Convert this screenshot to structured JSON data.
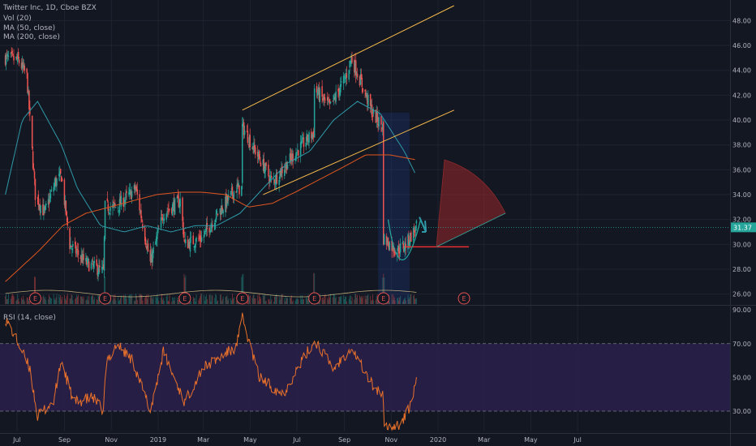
{
  "legend": {
    "symbol": "Twitter Inc, 1D, Cboe BZX",
    "vol": "Vol (20)",
    "ma50": "MA (50, close)",
    "ma200": "MA (200, close)",
    "rsi": "RSI (14, close)"
  },
  "price_badge": "31.37",
  "colors": {
    "background": "#131722",
    "up": "#26a69a",
    "down": "#ef5350",
    "ma50": "#2e9aa8",
    "ma200": "#e0561f",
    "channel": "#f5b94a",
    "rsi": "#e8702a",
    "rsi_band": "#2a1f4a"
  },
  "chart_data": {
    "type": "candlestick",
    "symbol": "Twitter Inc",
    "interval": "1D",
    "exchange": "Cboe BZX",
    "price_axis": {
      "ticks": [
        "26.00",
        "28.00",
        "30.00",
        "32.00",
        "34.00",
        "36.00",
        "38.00",
        "40.00",
        "42.00",
        "44.00",
        "46.00",
        "48.00"
      ],
      "ylim": [
        24.6,
        49.2
      ]
    },
    "time_axis": {
      "ticks": [
        "Jul",
        "Sep",
        "Nov",
        "2019",
        "Mar",
        "May",
        "Jul",
        "Sep",
        "Nov",
        "2020",
        "Mar",
        "May",
        "Jul"
      ]
    },
    "last_price": 31.37,
    "close_anchors": [
      [
        "2018-06-18",
        45.0
      ],
      [
        "2018-07-05",
        44.8
      ],
      [
        "2018-07-16",
        43.5
      ],
      [
        "2018-07-27",
        34.0
      ],
      [
        "2018-08-08",
        32.5
      ],
      [
        "2018-08-22",
        35.0
      ],
      [
        "2018-08-30",
        35.5
      ],
      [
        "2018-09-10",
        30.0
      ],
      [
        "2018-10-01",
        28.5
      ],
      [
        "2018-10-24",
        27.8
      ],
      [
        "2018-10-26",
        33.0
      ],
      [
        "2018-11-10",
        33.0
      ],
      [
        "2018-12-05",
        34.5
      ],
      [
        "2018-12-24",
        28.5
      ],
      [
        "2019-01-10",
        32.5
      ],
      [
        "2019-02-01",
        33.5
      ],
      [
        "2019-02-07",
        30.0
      ],
      [
        "2019-03-01",
        30.5
      ],
      [
        "2019-03-22",
        32.5
      ],
      [
        "2019-04-15",
        34.5
      ],
      [
        "2019-04-22",
        34.5
      ],
      [
        "2019-04-23",
        39.5
      ],
      [
        "2019-05-10",
        37.5
      ],
      [
        "2019-06-01",
        35.0
      ],
      [
        "2019-06-20",
        36.5
      ],
      [
        "2019-07-10",
        38.0
      ],
      [
        "2019-07-25",
        39.0
      ],
      [
        "2019-07-26",
        42.5
      ],
      [
        "2019-08-15",
        41.0
      ],
      [
        "2019-09-05",
        43.5
      ],
      [
        "2019-09-12",
        45.0
      ],
      [
        "2019-09-25",
        43.0
      ],
      [
        "2019-10-10",
        40.5
      ],
      [
        "2019-10-23",
        39.5
      ],
      [
        "2019-10-24",
        30.5
      ],
      [
        "2019-11-10",
        29.5
      ],
      [
        "2019-11-22",
        30.0
      ],
      [
        "2019-12-06",
        31.37
      ]
    ],
    "ma50_anchors": [
      [
        "2018-06-18",
        34.0
      ],
      [
        "2018-07-10",
        40.0
      ],
      [
        "2018-07-30",
        41.5
      ],
      [
        "2018-08-30",
        38.0
      ],
      [
        "2018-09-20",
        34.5
      ],
      [
        "2018-10-20",
        31.5
      ],
      [
        "2018-11-20",
        31.0
      ],
      [
        "2018-12-20",
        31.5
      ],
      [
        "2019-01-20",
        31.0
      ],
      [
        "2019-02-20",
        31.5
      ],
      [
        "2019-03-20",
        31.5
      ],
      [
        "2019-04-20",
        32.5
      ],
      [
        "2019-05-20",
        34.5
      ],
      [
        "2019-06-20",
        36.5
      ],
      [
        "2019-07-20",
        37.5
      ],
      [
        "2019-08-20",
        40.0
      ],
      [
        "2019-09-20",
        41.5
      ],
      [
        "2019-10-20",
        40.5
      ],
      [
        "2019-11-20",
        37.5
      ],
      [
        "2019-12-06",
        35.5
      ]
    ],
    "ma200_anchors": [
      [
        "2018-06-18",
        27.0
      ],
      [
        "2018-08-01",
        29.5
      ],
      [
        "2018-09-01",
        31.5
      ],
      [
        "2018-10-01",
        32.5
      ],
      [
        "2018-11-01",
        33.0
      ],
      [
        "2018-12-01",
        33.5
      ],
      [
        "2019-01-01",
        34.0
      ],
      [
        "2019-02-01",
        34.2
      ],
      [
        "2019-03-01",
        34.2
      ],
      [
        "2019-04-01",
        34.0
      ],
      [
        "2019-05-01",
        33.0
      ],
      [
        "2019-06-01",
        33.3
      ],
      [
        "2019-07-01",
        34.2
      ],
      [
        "2019-08-01",
        35.2
      ],
      [
        "2019-09-01",
        36.2
      ],
      [
        "2019-10-01",
        37.2
      ],
      [
        "2019-11-01",
        37.2
      ],
      [
        "2019-12-06",
        36.8
      ]
    ],
    "channel_lines": [
      {
        "from": [
          "2019-04-23",
          40.8
        ],
        "to": [
          "2020-01-24",
          49.2
        ]
      },
      {
        "from": [
          "2019-05-20",
          34.0
        ],
        "to": [
          "2020-01-24",
          40.8
        ]
      }
    ],
    "horizontal_level": {
      "price": 29.8,
      "from": "2019-11-22",
      "to": "2020-01-01"
    },
    "earnings_dates": [
      "2018-07-27",
      "2018-10-26",
      "2019-02-07",
      "2019-04-23",
      "2019-07-26",
      "2019-10-24",
      "2020-02-06"
    ],
    "rsi": {
      "period": 14,
      "ylim": [
        18,
        92
      ],
      "ticks": [
        "30.00",
        "50.00",
        "70.00",
        "90.00"
      ],
      "overbought": 70,
      "oversold": 30,
      "anchors": [
        [
          "2018-06-18",
          85.0
        ],
        [
          "2018-07-05",
          70.0
        ],
        [
          "2018-07-20",
          55.0
        ],
        [
          "2018-07-30",
          27.0
        ],
        [
          "2018-08-20",
          36.0
        ],
        [
          "2018-08-30",
          60.0
        ],
        [
          "2018-09-15",
          35.0
        ],
        [
          "2018-10-10",
          38.0
        ],
        [
          "2018-10-24",
          30.0
        ],
        [
          "2018-10-27",
          58.0
        ],
        [
          "2018-11-10",
          70.0
        ],
        [
          "2018-12-01",
          60.0
        ],
        [
          "2018-12-24",
          30.0
        ],
        [
          "2019-01-10",
          65.0
        ],
        [
          "2019-02-07",
          35.0
        ],
        [
          "2019-03-01",
          55.0
        ],
        [
          "2019-04-15",
          68.0
        ],
        [
          "2019-04-23",
          85.0
        ],
        [
          "2019-05-15",
          50.0
        ],
        [
          "2019-06-15",
          40.0
        ],
        [
          "2019-07-10",
          60.0
        ],
        [
          "2019-07-27",
          72.0
        ],
        [
          "2019-08-20",
          55.0
        ],
        [
          "2019-09-12",
          68.0
        ],
        [
          "2019-10-10",
          45.0
        ],
        [
          "2019-10-23",
          40.0
        ],
        [
          "2019-10-25",
          20.0
        ],
        [
          "2019-11-15",
          22.0
        ],
        [
          "2019-11-25",
          30.0
        ],
        [
          "2019-12-06",
          47.0
        ]
      ]
    }
  }
}
